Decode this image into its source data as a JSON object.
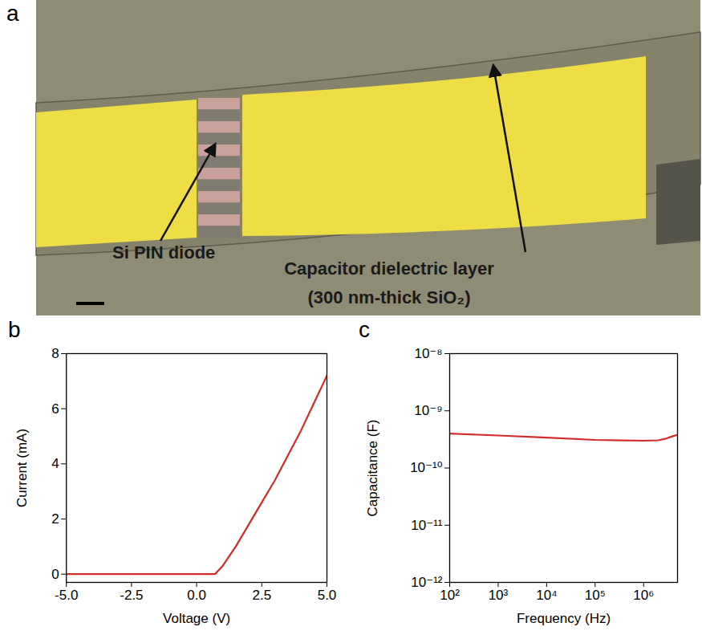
{
  "image_panel": {
    "panel": "a",
    "labels": [
      [
        "Si PIN diode"
      ],
      [
        "Capacitor dielectric layer",
        "(300 nm-thick SiO₂)"
      ]
    ]
  },
  "chart_data": [
    {
      "panel": "b",
      "type": "line",
      "x_label": "Voltage (V)",
      "y_label": "Current (mA)",
      "x": [
        -5,
        -2.5,
        0,
        0.7,
        1,
        1.5,
        2,
        2.5,
        3,
        3.5,
        4,
        4.5,
        5
      ],
      "values": [
        0,
        0,
        0,
        0,
        0.3,
        1.0,
        1.8,
        2.6,
        3.4,
        4.3,
        5.2,
        6.2,
        7.2
      ],
      "color": "#d42a2a",
      "xlim": [
        -5,
        5
      ],
      "xticks": [
        {
          "value": -5,
          "label": "-5.0"
        },
        {
          "value": -2.5,
          "label": "-2.5"
        },
        {
          "value": 0,
          "label": "0.0"
        },
        {
          "value": 2.5,
          "label": "2.5"
        },
        {
          "value": 5,
          "label": "5.0"
        }
      ],
      "ylim": [
        -0.3,
        8
      ],
      "yticks": [
        0,
        2,
        4,
        6,
        8
      ],
      "grid": false
    },
    {
      "panel": "c",
      "type": "line",
      "x_label": "Frequency (Hz)",
      "y_label": "Capacitance (F)",
      "x": [
        100,
        1000,
        10000,
        100000,
        1000000,
        2000000,
        3000000,
        4000000,
        5000000
      ],
      "values": [
        4e-10,
        3.7e-10,
        3.4e-10,
        3.1e-10,
        3e-10,
        3.05e-10,
        3.3e-10,
        3.6e-10,
        3.8e-10
      ],
      "color": "#d42a2a",
      "log": true,
      "xlim": [
        100,
        5000000
      ],
      "xticks": [
        {
          "value": 100,
          "label": "10²"
        },
        {
          "value": 1000,
          "label": "10³"
        },
        {
          "value": 10000,
          "label": "10⁴"
        },
        {
          "value": 100000,
          "label": "10⁵"
        },
        {
          "value": 1000000,
          "label": "10⁶"
        }
      ],
      "ylim": [
        1e-12,
        1e-08
      ],
      "yticks": [
        {
          "value": 1e-12,
          "label": "10⁻¹²"
        },
        {
          "value": 1e-11,
          "label": "10⁻¹¹"
        },
        {
          "value": 1e-10,
          "label": "10⁻¹⁰"
        },
        {
          "value": 1e-09,
          "label": "10⁻⁹"
        },
        {
          "value": 1e-08,
          "label": "10⁻⁸"
        }
      ],
      "grid": false
    }
  ]
}
